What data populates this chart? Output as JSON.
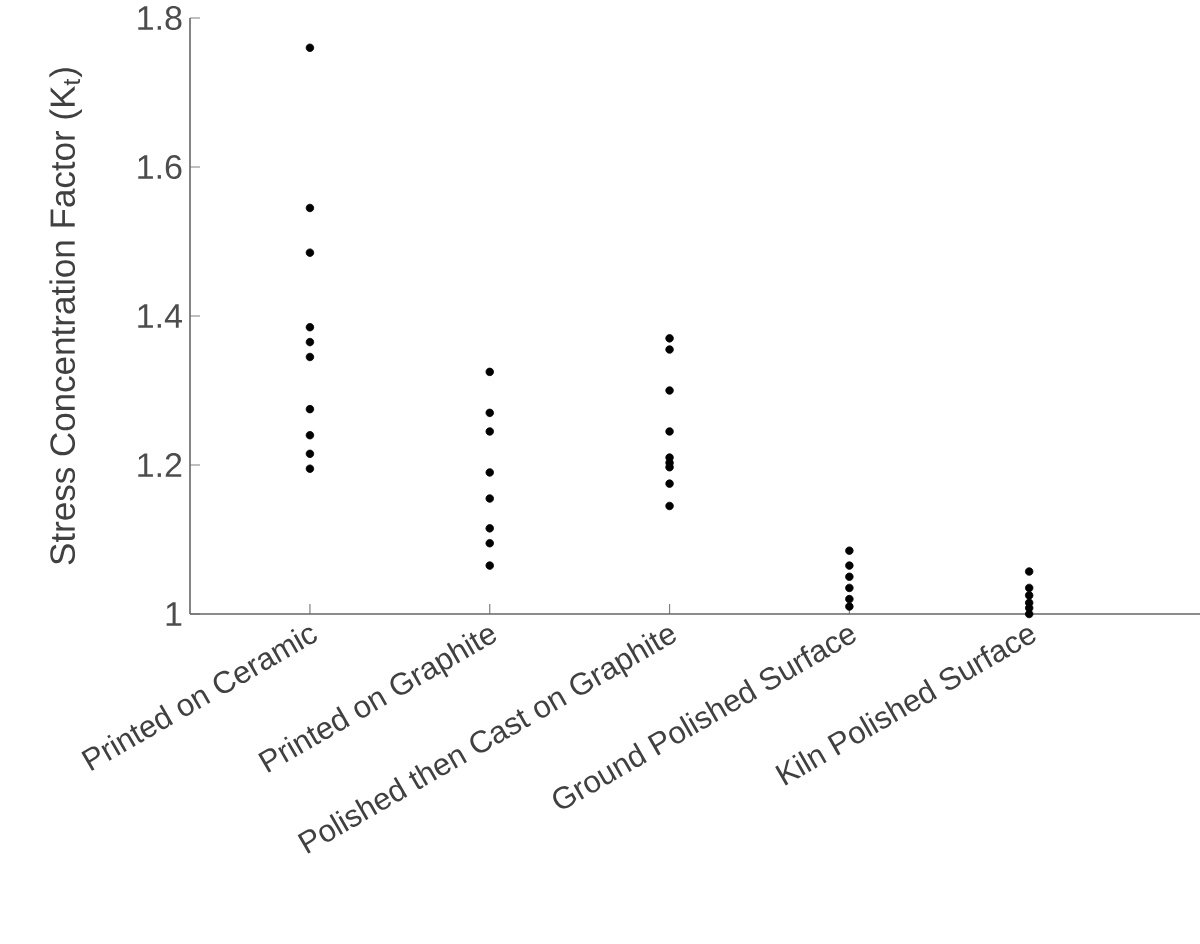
{
  "chart_data": {
    "type": "scatter",
    "ylabel": "Stress Concentration Factor (K$_{t}$)",
    "categories": [
      "Printed on Ceramic",
      "Printed on Graphite",
      "Polished then Cast on Graphite",
      "Ground Polished Surface",
      "Kiln Polished Surface"
    ],
    "series": [
      {
        "color": "#000000",
        "x": [
          "Printed on Ceramic",
          "Printed on Ceramic",
          "Printed on Ceramic",
          "Printed on Ceramic",
          "Printed on Ceramic",
          "Printed on Ceramic",
          "Printed on Ceramic",
          "Printed on Ceramic",
          "Printed on Ceramic",
          "Printed on Ceramic",
          "Printed on Graphite",
          "Printed on Graphite",
          "Printed on Graphite",
          "Printed on Graphite",
          "Printed on Graphite",
          "Printed on Graphite",
          "Printed on Graphite",
          "Printed on Graphite",
          "Polished then Cast on Graphite",
          "Polished then Cast on Graphite",
          "Polished then Cast on Graphite",
          "Polished then Cast on Graphite",
          "Polished then Cast on Graphite",
          "Polished then Cast on Graphite",
          "Polished then Cast on Graphite",
          "Polished then Cast on Graphite",
          "Polished then Cast on Graphite",
          "Ground Polished Surface",
          "Ground Polished Surface",
          "Ground Polished Surface",
          "Ground Polished Surface",
          "Ground Polished Surface",
          "Ground Polished Surface",
          "Kiln Polished Surface",
          "Kiln Polished Surface",
          "Kiln Polished Surface",
          "Kiln Polished Surface",
          "Kiln Polished Surface",
          "Kiln Polished Surface"
        ],
        "values": [
          1.76,
          1.545,
          1.485,
          1.385,
          1.365,
          1.345,
          1.275,
          1.24,
          1.215,
          1.195,
          1.325,
          1.27,
          1.245,
          1.19,
          1.155,
          1.115,
          1.095,
          1.065,
          1.37,
          1.355,
          1.3,
          1.245,
          1.21,
          1.203,
          1.197,
          1.175,
          1.145,
          1.085,
          1.065,
          1.05,
          1.035,
          1.02,
          1.01,
          1.057,
          1.035,
          1.025,
          1.015,
          1.008,
          1.0
        ]
      }
    ],
    "ylim": [
      1,
      1.8
    ],
    "yticks": [
      1,
      1.2,
      1.4,
      1.6,
      1.8
    ],
    "grid": false,
    "marker": "circle"
  }
}
